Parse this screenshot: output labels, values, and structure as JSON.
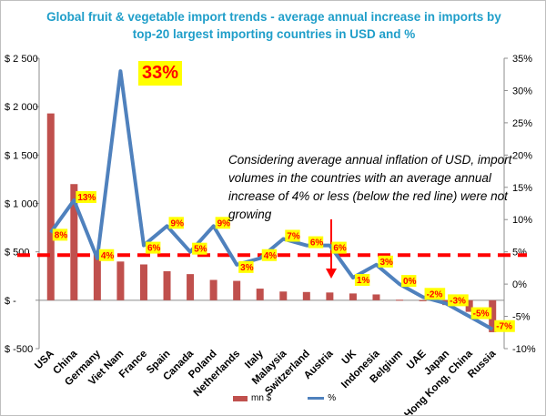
{
  "chart_data": {
    "type": "bar+line",
    "title": "Global fruit & vegetable import trends  - average annual increase in imports by top-20 largest importing countries in USD and %",
    "categories": [
      "USA",
      "China",
      "Germany",
      "Viet Nam",
      "France",
      "Spain",
      "Canada",
      "Poland",
      "Netherlands",
      "Italy",
      "Malaysia",
      "Switzerland",
      "Austria",
      "UK",
      "Indonesia",
      "Belgium",
      "UAE",
      "Japan",
      "Hong Kong, China",
      "Russia"
    ],
    "series": [
      {
        "name": "mn $",
        "type": "bar",
        "axis": "left",
        "values": [
          1930,
          1200,
          490,
          400,
          370,
          300,
          270,
          210,
          200,
          120,
          90,
          85,
          80,
          70,
          60,
          5,
          -10,
          -50,
          -120,
          -330
        ]
      },
      {
        "name": "%",
        "type": "line",
        "axis": "right",
        "values": [
          8,
          13,
          4,
          33,
          6,
          9,
          5,
          9,
          3,
          4,
          7,
          6,
          6,
          1,
          3,
          0,
          -2,
          -3,
          -5,
          -7
        ]
      }
    ],
    "point_labels": [
      "8%",
      "13%",
      "4%",
      "33%",
      "6%",
      "9%",
      "5%",
      "9%",
      "3%",
      "4%",
      "7%",
      "6%",
      "6%",
      "1%",
      "3%",
      "0%",
      "-2%",
      "-3%",
      "-5%",
      "-7%"
    ],
    "y_left": {
      "lim": [
        -500,
        2500
      ],
      "ticks": [
        -500,
        0,
        500,
        1000,
        1500,
        2000,
        2500
      ],
      "tick_labels": [
        "$ -500",
        "$ -",
        "$ 500",
        "$ 1 000",
        "$ 1 500",
        "$ 2 000",
        "$ 2 500"
      ]
    },
    "y_right": {
      "lim": [
        -10,
        35
      ],
      "ticks": [
        -10,
        -5,
        0,
        5,
        10,
        15,
        20,
        25,
        30,
        35
      ],
      "tick_labels": [
        "-10%",
        "-5%",
        "0%",
        "5%",
        "10%",
        "15%",
        "20%",
        "25%",
        "30%",
        "35%"
      ]
    },
    "threshold_line": {
      "axis": "right",
      "value": 4.5,
      "color": "#ff0000",
      "style": "dashed"
    },
    "annotation": "Considering average annual inflation of USD, import volumes in the countries with an average annual increase of 4% or less (below the red line) were not growing",
    "peak_label": "33%",
    "legend": {
      "placement": "bottom",
      "entries": [
        "mn $",
        "%"
      ]
    },
    "colors": {
      "bars": "#c0504d",
      "line": "#4f81bd",
      "title": "#1f9ec9",
      "label_bg": "#ffff00",
      "label_text": "#ff0000",
      "threshold": "#ff0000"
    }
  }
}
